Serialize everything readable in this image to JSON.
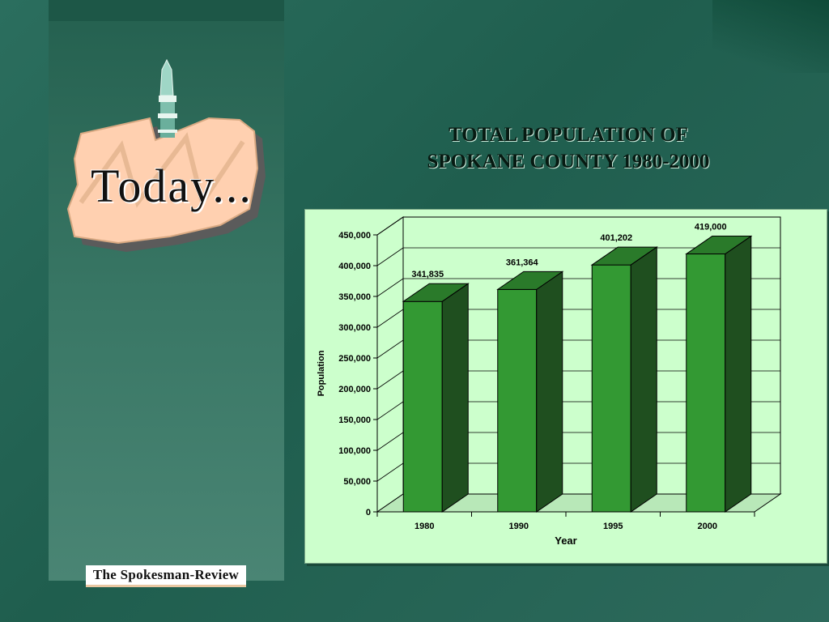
{
  "logo": {
    "text": "Today...",
    "icon": "spokane-tower-icon"
  },
  "publisher": {
    "name": "The Spokesman-Review"
  },
  "colors": {
    "bar_front": "#339933",
    "bar_side": "#1f4f1f",
    "bar_top": "#2a7a2a",
    "plot_bg": "#ccffcc",
    "title_text": "#071a12"
  },
  "chart_data": {
    "type": "bar",
    "title_line1": "TOTAL POPULATION OF",
    "title_line2": "SPOKANE COUNTY 1980-2000",
    "xlabel": "Year",
    "ylabel": "Population",
    "categories": [
      "1980",
      "1990",
      "1995",
      "2000"
    ],
    "values": [
      341835,
      361364,
      401202,
      419000
    ],
    "data_labels": [
      "341,835",
      "361,364",
      "401,202",
      "419,000"
    ],
    "ylim": [
      0,
      450000
    ],
    "yticks": [
      0,
      50000,
      100000,
      150000,
      200000,
      250000,
      300000,
      350000,
      400000,
      450000
    ],
    "ytick_labels": [
      "0",
      "50,000",
      "100,000",
      "150,000",
      "200,000",
      "250,000",
      "300,000",
      "350,000",
      "400,000",
      "450,000"
    ],
    "grid": true,
    "style": "3d-column"
  }
}
